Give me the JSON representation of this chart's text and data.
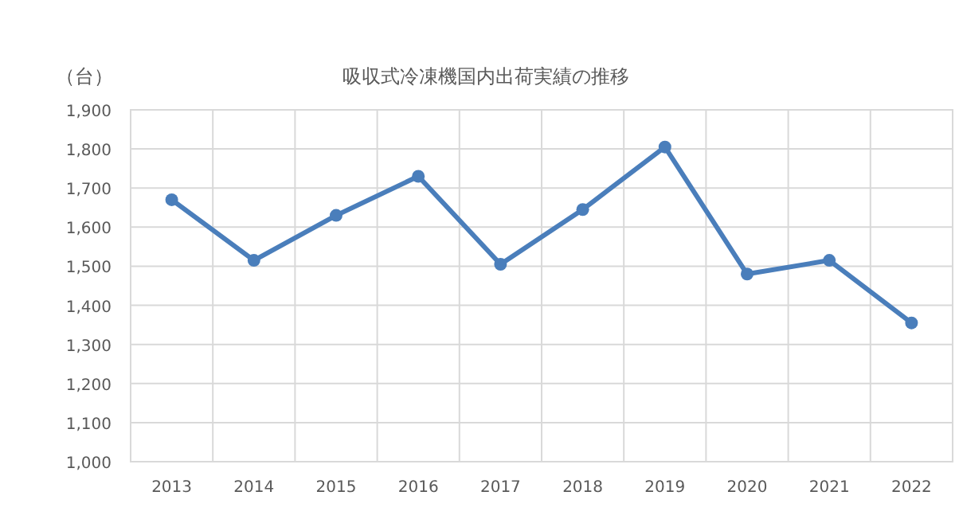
{
  "chart_data": {
    "type": "line",
    "title": "吸収式冷凍機国内出荷実績の推移",
    "ylabel": "（台）",
    "categories": [
      "2013",
      "2014",
      "2015",
      "2016",
      "2017",
      "2018",
      "2019",
      "2020",
      "2021",
      "2022"
    ],
    "series": [
      {
        "color": "#4a7ebb",
        "values": [
          1670,
          1515,
          1630,
          1730,
          1505,
          1645,
          1805,
          1480,
          1515,
          1355
        ]
      }
    ],
    "ylim": [
      1000,
      1900
    ],
    "yticks": [
      {
        "value": 1000,
        "label": "1,000"
      },
      {
        "value": 1100,
        "label": "1,100"
      },
      {
        "value": 1200,
        "label": "1,200"
      },
      {
        "value": 1300,
        "label": "1,300"
      },
      {
        "value": 1400,
        "label": "1,400"
      },
      {
        "value": 1500,
        "label": "1,500"
      },
      {
        "value": 1600,
        "label": "1,600"
      },
      {
        "value": 1700,
        "label": "1,700"
      },
      {
        "value": 1800,
        "label": "1,800"
      },
      {
        "value": 1900,
        "label": "1,900"
      }
    ],
    "grid": true,
    "marker": "circle",
    "line_style": "solid"
  }
}
